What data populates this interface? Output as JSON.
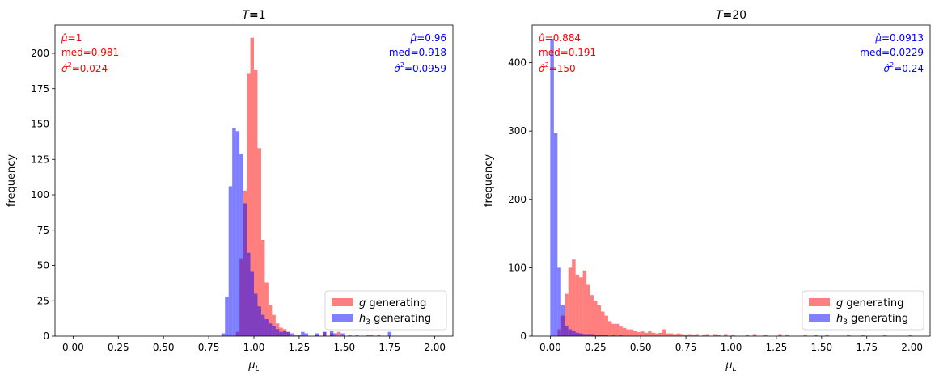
{
  "chart_data": [
    {
      "type": "histogram",
      "title": "T=1",
      "xlabel": "μ_L",
      "ylabel": "frequency",
      "xlim": [
        -0.1,
        2.1
      ],
      "ylim": [
        0,
        220
      ],
      "xticks": [
        "0.00",
        "0.25",
        "0.50",
        "0.75",
        "1.00",
        "1.25",
        "1.50",
        "1.75",
        "2.00"
      ],
      "yticks": [
        "0",
        "25",
        "50",
        "75",
        "100",
        "125",
        "150",
        "175",
        "200"
      ],
      "legend": {
        "position": "lower right",
        "entries": [
          "g generating",
          "h3 generating"
        ]
      },
      "stats": {
        "g": {
          "mu_hat": "=1",
          "med": "med=0.981",
          "sigma2": "=0.024",
          "color": "#ff0000"
        },
        "h3": {
          "mu_hat": "=0.96",
          "med": "med=0.918",
          "sigma2": "=0.0959",
          "color": "#0000ff"
        }
      },
      "bin_width": 0.02,
      "series": [
        {
          "name": "g generating",
          "color": "#ff0000",
          "alpha": 0.5,
          "bins": [
            [
              0.9,
              3
            ],
            [
              0.92,
              55
            ],
            [
              0.94,
              103
            ],
            [
              0.96,
              186
            ],
            [
              0.98,
              211
            ],
            [
              1.0,
              188
            ],
            [
              1.02,
              133
            ],
            [
              1.04,
              68
            ],
            [
              1.06,
              38
            ],
            [
              1.08,
              22
            ],
            [
              1.1,
              15
            ],
            [
              1.12,
              9
            ],
            [
              1.14,
              6
            ],
            [
              1.16,
              5
            ],
            [
              1.18,
              3
            ],
            [
              1.22,
              1
            ],
            [
              1.34,
              1
            ],
            [
              1.38,
              3
            ],
            [
              1.42,
              2
            ],
            [
              1.46,
              3
            ],
            [
              1.52,
              1
            ],
            [
              1.56,
              1
            ],
            [
              1.62,
              1
            ],
            [
              1.64,
              1
            ],
            [
              1.68,
              1
            ]
          ]
        },
        {
          "name": "h3 generating",
          "color": "#0000ff",
          "alpha": 0.5,
          "bins": [
            [
              0.82,
              2
            ],
            [
              0.84,
              28
            ],
            [
              0.86,
              106
            ],
            [
              0.88,
              147
            ],
            [
              0.9,
              145
            ],
            [
              0.92,
              129
            ],
            [
              0.94,
              94
            ],
            [
              0.96,
              59
            ],
            [
              0.98,
              46
            ],
            [
              1.0,
              30
            ],
            [
              1.02,
              21
            ],
            [
              1.04,
              15
            ],
            [
              1.06,
              12
            ],
            [
              1.08,
              9
            ],
            [
              1.1,
              7
            ],
            [
              1.12,
              5
            ],
            [
              1.14,
              3
            ],
            [
              1.16,
              4
            ],
            [
              1.18,
              3
            ],
            [
              1.2,
              2
            ],
            [
              1.24,
              1
            ],
            [
              1.26,
              3
            ],
            [
              1.28,
              2
            ],
            [
              1.34,
              2
            ],
            [
              1.38,
              3
            ],
            [
              1.42,
              4
            ],
            [
              1.44,
              2
            ],
            [
              1.48,
              2
            ],
            [
              1.74,
              3
            ]
          ]
        }
      ]
    },
    {
      "type": "histogram",
      "title": "T=20",
      "xlabel": "μ_L",
      "ylabel": "frequency",
      "xlim": [
        -0.1,
        2.1
      ],
      "ylim": [
        0,
        455
      ],
      "xticks": [
        "0.00",
        "0.25",
        "0.50",
        "0.75",
        "1.00",
        "1.25",
        "1.50",
        "1.75",
        "2.00"
      ],
      "yticks": [
        "0",
        "100",
        "200",
        "300",
        "400"
      ],
      "legend": {
        "position": "lower right",
        "entries": [
          "g generating",
          "h3 generating"
        ]
      },
      "stats": {
        "g": {
          "mu_hat": "=0.884",
          "med": "med=0.191",
          "sigma2": "=150",
          "color": "#ff0000"
        },
        "h3": {
          "mu_hat": "=0.0913",
          "med": "med=0.0229",
          "sigma2": "=0.24",
          "color": "#0000ff"
        }
      },
      "bin_width": 0.02,
      "series": [
        {
          "name": "g generating",
          "color": "#ff0000",
          "alpha": 0.5,
          "bins": [
            [
              0.04,
              10
            ],
            [
              0.06,
              30
            ],
            [
              0.08,
              62
            ],
            [
              0.1,
              100
            ],
            [
              0.12,
              112
            ],
            [
              0.14,
              90
            ],
            [
              0.16,
              86
            ],
            [
              0.18,
              96
            ],
            [
              0.2,
              75
            ],
            [
              0.22,
              60
            ],
            [
              0.24,
              52
            ],
            [
              0.26,
              45
            ],
            [
              0.28,
              36
            ],
            [
              0.3,
              30
            ],
            [
              0.32,
              22
            ],
            [
              0.34,
              18
            ],
            [
              0.36,
              18
            ],
            [
              0.38,
              14
            ],
            [
              0.4,
              12
            ],
            [
              0.42,
              10
            ],
            [
              0.44,
              10
            ],
            [
              0.46,
              8
            ],
            [
              0.48,
              6
            ],
            [
              0.5,
              7
            ],
            [
              0.52,
              5
            ],
            [
              0.54,
              7
            ],
            [
              0.56,
              5
            ],
            [
              0.58,
              4
            ],
            [
              0.6,
              5
            ],
            [
              0.62,
              10
            ],
            [
              0.64,
              4
            ],
            [
              0.66,
              4
            ],
            [
              0.68,
              3
            ],
            [
              0.7,
              4
            ],
            [
              0.72,
              3
            ],
            [
              0.74,
              2
            ],
            [
              0.76,
              3
            ],
            [
              0.78,
              2
            ],
            [
              0.8,
              3
            ],
            [
              0.84,
              2
            ],
            [
              0.86,
              3
            ],
            [
              0.9,
              3
            ],
            [
              0.92,
              2
            ],
            [
              0.96,
              3
            ],
            [
              1.0,
              2
            ],
            [
              1.08,
              2
            ],
            [
              1.12,
              3
            ],
            [
              1.18,
              2
            ],
            [
              1.26,
              3
            ],
            [
              1.3,
              2
            ],
            [
              1.4,
              2
            ],
            [
              1.46,
              2
            ],
            [
              1.52,
              2
            ],
            [
              1.64,
              2
            ],
            [
              1.72,
              2
            ],
            [
              1.84,
              2
            ],
            [
              1.98,
              2
            ]
          ]
        },
        {
          "name": "h3 generating",
          "color": "#0000ff",
          "alpha": 0.5,
          "bins": [
            [
              -0.02,
              0
            ],
            [
              0.0,
              435
            ],
            [
              0.02,
              297
            ],
            [
              0.04,
              100
            ],
            [
              0.06,
              45
            ],
            [
              0.08,
              15
            ],
            [
              0.1,
              10
            ],
            [
              0.12,
              8
            ],
            [
              0.14,
              5
            ],
            [
              0.16,
              4
            ],
            [
              0.18,
              3
            ],
            [
              0.2,
              3
            ],
            [
              0.22,
              3
            ],
            [
              0.24,
              2
            ],
            [
              0.26,
              2
            ],
            [
              0.28,
              2
            ],
            [
              0.3,
              2
            ],
            [
              0.34,
              1
            ],
            [
              0.38,
              1
            ]
          ]
        }
      ]
    }
  ]
}
